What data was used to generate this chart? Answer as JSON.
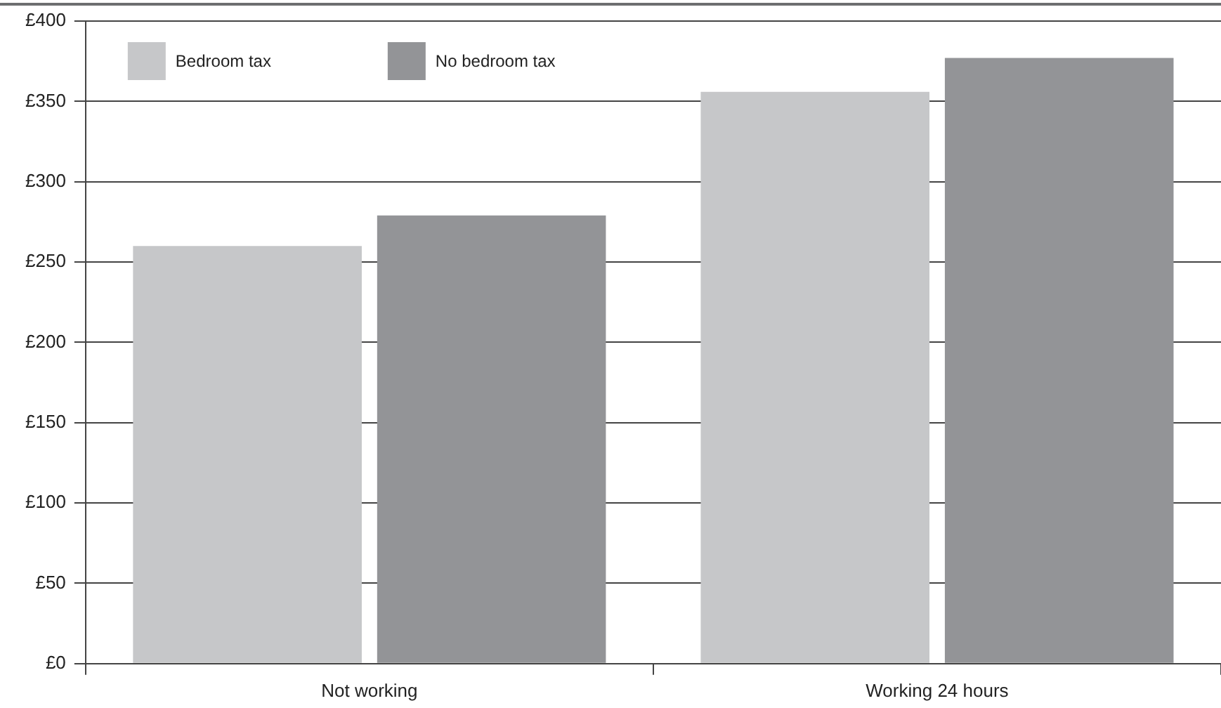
{
  "chart_data": {
    "type": "bar",
    "categories": [
      "Not working",
      "Working 24 hours"
    ],
    "series": [
      {
        "name": "Bedroom tax",
        "color": "#c6c7c9",
        "values": [
          260,
          356
        ]
      },
      {
        "name": "No bedroom tax",
        "color": "#939497",
        "values": [
          279,
          377
        ]
      }
    ],
    "ylim": [
      0,
      400
    ],
    "yticks": [
      {
        "value": 0,
        "label": "£0"
      },
      {
        "value": 50,
        "label": "£50"
      },
      {
        "value": 100,
        "label": "£100"
      },
      {
        "value": 150,
        "label": "£150"
      },
      {
        "value": 200,
        "label": "£200"
      },
      {
        "value": 250,
        "label": "£250"
      },
      {
        "value": 300,
        "label": "£300"
      },
      {
        "value": 350,
        "label": "£350"
      },
      {
        "value": 400,
        "label": "£400"
      }
    ],
    "grid": "y",
    "legend": "top left"
  }
}
